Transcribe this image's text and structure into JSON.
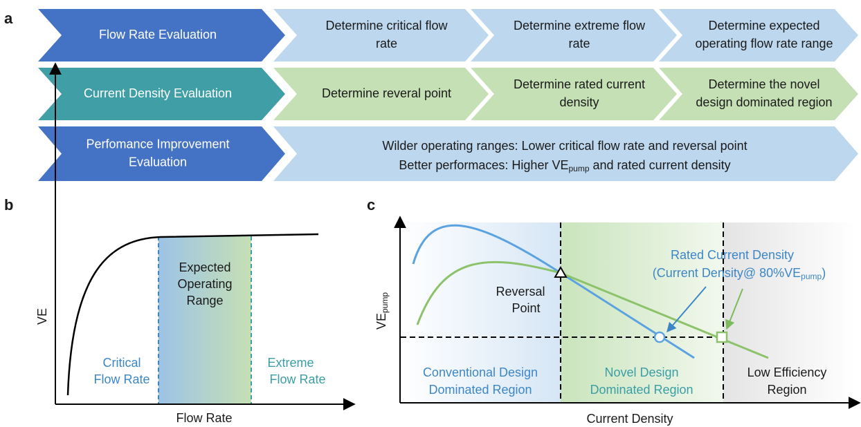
{
  "panel_a": {
    "label": "a",
    "rows": [
      {
        "title": [
          "Flow Rate Evaluation"
        ],
        "steps": [
          [
            "Determine critical flow",
            "rate"
          ],
          [
            "Determine extreme flow",
            "rate"
          ],
          [
            "Determine expected",
            "operating flow rate range"
          ]
        ]
      },
      {
        "title": [
          "Current Density Evaluation"
        ],
        "steps": [
          [
            "Determine reveral point"
          ],
          [
            "Determine rated current",
            "density"
          ],
          [
            "Determine the novel",
            "design dominated region"
          ]
        ]
      },
      {
        "title": [
          "Perfomance Improvement",
          "Evaluation"
        ],
        "summary": {
          "line1": "Wilder operating ranges: Lower critical flow rate and reversal point",
          "line2": [
            "Better performaces: Higher VE",
            "pump",
            " and rated current density"
          ]
        }
      }
    ]
  },
  "panel_b": {
    "label": "b",
    "y_axis": "VE",
    "x_axis": "Flow Rate",
    "range_label": [
      "Expected",
      "Operating",
      "Range"
    ],
    "critical_label": [
      "Critical",
      "Flow Rate"
    ],
    "extreme_label": [
      "Extreme",
      "Flow Rate"
    ]
  },
  "panel_c": {
    "label": "c",
    "y_axis": [
      "VE",
      "pump"
    ],
    "x_axis": "Current Density",
    "reversal_label": [
      "Reversal",
      "Point"
    ],
    "rated_label": {
      "line1": "Rated Current Density",
      "line2": [
        "(Current Density@ 80%VE",
        "pump",
        ")"
      ]
    },
    "regions": [
      [
        "Conventional Design",
        "Dominated Region"
      ],
      [
        "Novel Design",
        "Dominated Region"
      ],
      [
        "Low Efficiency",
        "Region"
      ]
    ]
  }
}
